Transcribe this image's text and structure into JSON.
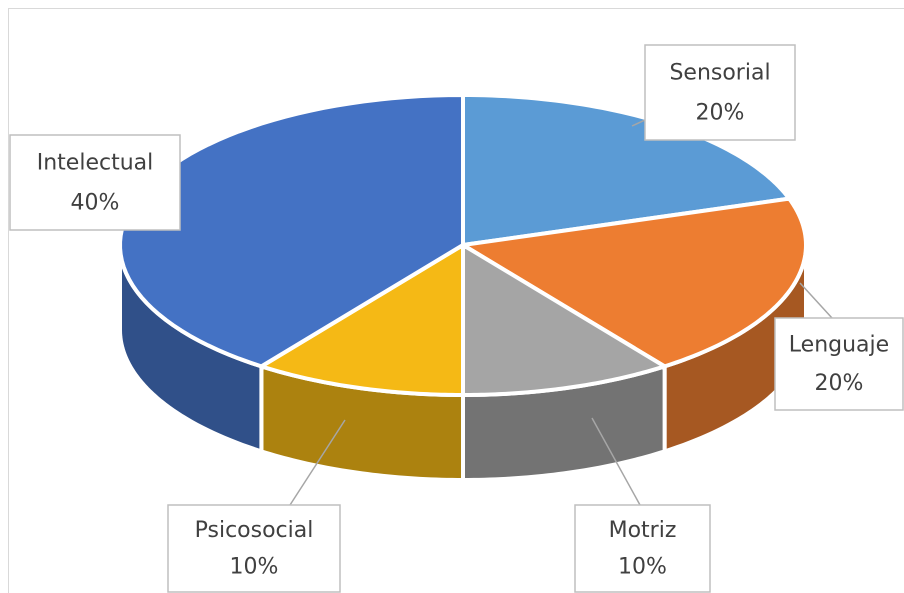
{
  "chart_data": {
    "type": "pie3d",
    "categories": [
      "Sensorial",
      "Lenguaje",
      "Motriz",
      "Psicosocial",
      "Intelectual"
    ],
    "values": [
      20,
      20,
      10,
      10,
      40
    ],
    "value_labels": [
      "20%",
      "20%",
      "10%",
      "10%",
      "40%"
    ],
    "colors": [
      "#5b9bd5",
      "#ed7d31",
      "#a5a5a5",
      "#f5b915",
      "#4472c4"
    ]
  }
}
